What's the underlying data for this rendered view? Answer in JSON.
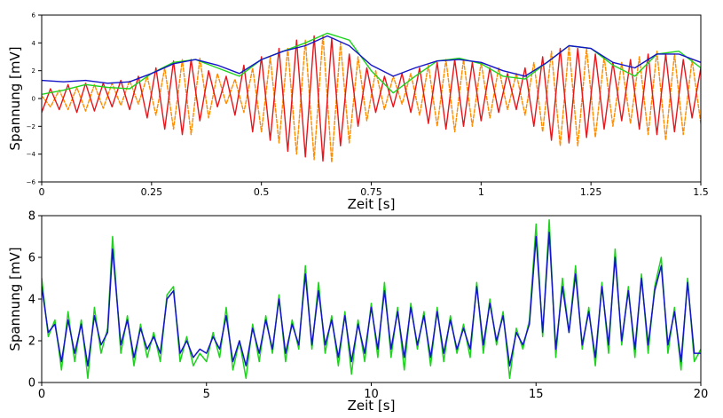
{
  "chart_data": [
    {
      "type": "line",
      "xlabel": "Zeit [s]",
      "ylabel": "Spannung [mV]",
      "xlim": [
        0,
        1.5
      ],
      "ylim": [
        -6,
        6
      ],
      "xticks": [
        {
          "v": 0,
          "label": "0"
        },
        {
          "v": 0.25,
          "label": "0.25"
        },
        {
          "v": 0.5,
          "label": "0.5"
        },
        {
          "v": 0.75,
          "label": "0.75"
        },
        {
          "v": 1,
          "label": "1"
        },
        {
          "v": 1.25,
          "label": "1.25"
        },
        {
          "v": 1.5,
          "label": "1.5"
        }
      ],
      "yticks": [
        {
          "v": -6,
          "label": "−6"
        },
        {
          "v": -4,
          "label": "−4"
        },
        {
          "v": -2,
          "label": "−2"
        },
        {
          "v": 0,
          "label": "0"
        },
        {
          "v": 2,
          "label": "2"
        },
        {
          "v": 4,
          "label": "4"
        },
        {
          "v": 6,
          "label": "6"
        }
      ],
      "grid": false,
      "series": [
        {
          "color": "#ff8c00",
          "dashed": true,
          "x": [
            0,
            0.02,
            0.04,
            0.06,
            0.08,
            0.1,
            0.12,
            0.14,
            0.16,
            0.18,
            0.2,
            0.22,
            0.24,
            0.26,
            0.28,
            0.3,
            0.32,
            0.34,
            0.36,
            0.38,
            0.4,
            0.42,
            0.44,
            0.46,
            0.48,
            0.5,
            0.52,
            0.54,
            0.56,
            0.58,
            0.6,
            0.62,
            0.64,
            0.66,
            0.68,
            0.7,
            0.72,
            0.74,
            0.76,
            0.78,
            0.8,
            0.82,
            0.84,
            0.86,
            0.88,
            0.9,
            0.92,
            0.94,
            0.96,
            0.98,
            1.0,
            1.02,
            1.04,
            1.06,
            1.08,
            1.1,
            1.12,
            1.14,
            1.16,
            1.18,
            1.2,
            1.22,
            1.24,
            1.26,
            1.28,
            1.3,
            1.32,
            1.34,
            1.36,
            1.38,
            1.4,
            1.42,
            1.44,
            1.46,
            1.48,
            1.5
          ],
          "y": [
            0.2,
            -0.6,
            0.6,
            -0.8,
            0.8,
            -0.9,
            1.0,
            -0.7,
            1.1,
            -0.5,
            1.3,
            -0.4,
            1.6,
            -1.2,
            2.2,
            -2.2,
            2.8,
            -2.6,
            2.9,
            -1.4,
            1.8,
            -0.4,
            1.4,
            -1.0,
            2.2,
            -2.4,
            3.0,
            -3.2,
            3.6,
            -4.0,
            4.2,
            -4.4,
            4.6,
            -4.6,
            4.0,
            -3.2,
            3.0,
            -1.6,
            2.0,
            -0.8,
            1.6,
            -0.4,
            1.8,
            -1.2,
            2.4,
            -2.0,
            2.8,
            -2.4,
            2.8,
            -2.0,
            2.6,
            -1.4,
            2.2,
            -0.8,
            1.8,
            -1.2,
            2.6,
            -2.4,
            3.4,
            -3.4,
            3.8,
            -3.4,
            3.6,
            -2.8,
            3.0,
            -2.0,
            2.6,
            -1.8,
            3.0,
            -2.6,
            3.4,
            -3.0,
            3.2,
            -2.6,
            2.8,
            -1.8
          ]
        },
        {
          "color": "#e8151b",
          "dashed": false,
          "x": [
            0,
            0.02,
            0.04,
            0.06,
            0.08,
            0.1,
            0.12,
            0.14,
            0.16,
            0.18,
            0.2,
            0.22,
            0.24,
            0.26,
            0.28,
            0.3,
            0.32,
            0.34,
            0.36,
            0.38,
            0.4,
            0.42,
            0.44,
            0.46,
            0.48,
            0.5,
            0.52,
            0.54,
            0.56,
            0.58,
            0.6,
            0.62,
            0.64,
            0.66,
            0.68,
            0.7,
            0.72,
            0.74,
            0.76,
            0.78,
            0.8,
            0.82,
            0.84,
            0.86,
            0.88,
            0.9,
            0.92,
            0.94,
            0.96,
            0.98,
            1.0,
            1.02,
            1.04,
            1.06,
            1.08,
            1.1,
            1.12,
            1.14,
            1.16,
            1.18,
            1.2,
            1.22,
            1.24,
            1.26,
            1.28,
            1.3,
            1.32,
            1.34,
            1.36,
            1.38,
            1.4,
            1.42,
            1.44,
            1.46,
            1.48,
            1.5
          ],
          "y": [
            -1.0,
            0.7,
            -0.8,
            1.0,
            -1.0,
            1.1,
            -0.9,
            1.1,
            -0.6,
            1.3,
            -0.8,
            1.6,
            -1.4,
            2.2,
            -2.2,
            2.7,
            -2.6,
            2.8,
            -1.6,
            2.0,
            -0.6,
            1.6,
            -1.2,
            2.4,
            -2.4,
            3.0,
            -3.0,
            3.6,
            -3.8,
            4.2,
            -4.2,
            4.5,
            -4.5,
            4.3,
            -3.4,
            3.2,
            -2.0,
            2.2,
            -1.0,
            1.6,
            -0.6,
            1.8,
            -1.0,
            2.2,
            -1.8,
            2.6,
            -2.2,
            2.8,
            -2.0,
            2.6,
            -1.6,
            2.2,
            -1.0,
            1.8,
            -0.8,
            2.2,
            -2.0,
            3.0,
            -3.0,
            3.6,
            -3.2,
            3.6,
            -2.8,
            3.2,
            -2.2,
            2.6,
            -1.6,
            2.8,
            -2.2,
            3.2,
            -2.6,
            3.2,
            -2.4,
            2.8,
            -1.4,
            2.2
          ]
        },
        {
          "color": "#1ed31e",
          "dashed": false,
          "x": [
            0,
            0.05,
            0.1,
            0.15,
            0.2,
            0.25,
            0.3,
            0.35,
            0.4,
            0.45,
            0.5,
            0.55,
            0.6,
            0.65,
            0.7,
            0.75,
            0.8,
            0.85,
            0.9,
            0.95,
            1.0,
            1.05,
            1.1,
            1.15,
            1.2,
            1.25,
            1.3,
            1.35,
            1.4,
            1.45,
            1.5
          ],
          "y": [
            0.3,
            0.6,
            1.0,
            0.8,
            0.7,
            1.8,
            2.6,
            2.8,
            2.2,
            1.6,
            2.8,
            3.4,
            4.0,
            4.7,
            4.2,
            2.0,
            0.4,
            1.6,
            2.7,
            2.9,
            2.5,
            1.6,
            1.4,
            2.6,
            3.8,
            3.6,
            2.4,
            1.6,
            3.2,
            3.4,
            2.2
          ]
        },
        {
          "color": "#1414c8",
          "dashed": false,
          "x": [
            0,
            0.05,
            0.1,
            0.15,
            0.2,
            0.25,
            0.3,
            0.35,
            0.4,
            0.45,
            0.5,
            0.55,
            0.6,
            0.65,
            0.7,
            0.75,
            0.8,
            0.85,
            0.9,
            0.95,
            1.0,
            1.05,
            1.1,
            1.15,
            1.2,
            1.25,
            1.3,
            1.35,
            1.4,
            1.45,
            1.5
          ],
          "y": [
            1.3,
            1.2,
            1.3,
            1.1,
            1.2,
            1.8,
            2.5,
            2.8,
            2.4,
            1.8,
            2.8,
            3.4,
            3.8,
            4.5,
            3.8,
            2.4,
            1.6,
            2.2,
            2.7,
            2.8,
            2.6,
            2.0,
            1.6,
            2.6,
            3.8,
            3.6,
            2.6,
            2.2,
            3.2,
            3.2,
            2.6
          ]
        }
      ]
    },
    {
      "type": "line",
      "xlabel": "Zeit [s]",
      "ylabel": "Spannung [mV]",
      "xlim": [
        0,
        20
      ],
      "ylim": [
        0,
        8
      ],
      "xticks": [
        {
          "v": 0,
          "label": "0"
        },
        {
          "v": 5,
          "label": "5"
        },
        {
          "v": 10,
          "label": "10"
        },
        {
          "v": 15,
          "label": "15"
        },
        {
          "v": 20,
          "label": "20"
        }
      ],
      "yticks": [
        {
          "v": 0,
          "label": "0"
        },
        {
          "v": 2,
          "label": "2"
        },
        {
          "v": 4,
          "label": "4"
        },
        {
          "v": 6,
          "label": "6"
        },
        {
          "v": 8,
          "label": "8"
        }
      ],
      "grid": false,
      "series": [
        {
          "color": "#1ed31e",
          "dashed": false,
          "x": [
            0,
            0.2,
            0.4,
            0.6,
            0.8,
            1.0,
            1.2,
            1.4,
            1.6,
            1.8,
            2.0,
            2.15,
            2.4,
            2.6,
            2.8,
            3.0,
            3.2,
            3.4,
            3.6,
            3.8,
            4.0,
            4.2,
            4.4,
            4.6,
            4.8,
            5.0,
            5.2,
            5.4,
            5.6,
            5.8,
            6.0,
            6.2,
            6.4,
            6.6,
            6.8,
            7.0,
            7.2,
            7.4,
            7.6,
            7.8,
            8.0,
            8.2,
            8.4,
            8.6,
            8.8,
            9.0,
            9.2,
            9.4,
            9.6,
            9.8,
            10.0,
            10.2,
            10.4,
            10.6,
            10.8,
            11.0,
            11.2,
            11.4,
            11.6,
            11.8,
            12.0,
            12.2,
            12.4,
            12.6,
            12.8,
            13.0,
            13.2,
            13.4,
            13.6,
            13.8,
            14.0,
            14.2,
            14.4,
            14.6,
            14.8,
            15.0,
            15.2,
            15.4,
            15.6,
            15.8,
            16.0,
            16.2,
            16.4,
            16.6,
            16.8,
            17.0,
            17.2,
            17.4,
            17.6,
            17.8,
            18.0,
            18.2,
            18.4,
            18.6,
            18.8,
            19.0,
            19.2,
            19.4,
            19.6,
            19.8,
            20.0
          ],
          "y": [
            5.0,
            2.2,
            3.0,
            0.6,
            3.4,
            1.0,
            3.0,
            0.2,
            3.6,
            1.4,
            2.6,
            7.0,
            1.4,
            3.2,
            0.8,
            2.8,
            1.2,
            2.4,
            1.0,
            4.2,
            4.6,
            1.0,
            2.2,
            0.8,
            1.4,
            1.0,
            2.4,
            1.2,
            3.6,
            0.6,
            2.0,
            0.2,
            2.8,
            1.0,
            3.2,
            1.4,
            4.2,
            1.0,
            3.0,
            1.6,
            5.6,
            1.6,
            4.8,
            1.4,
            3.2,
            0.8,
            3.4,
            0.4,
            3.0,
            1.0,
            3.8,
            1.2,
            4.8,
            1.2,
            3.6,
            0.6,
            3.8,
            1.6,
            3.4,
            0.8,
            3.6,
            1.0,
            3.2,
            1.4,
            2.8,
            1.2,
            4.8,
            1.4,
            4.0,
            1.8,
            3.4,
            0.2,
            2.6,
            1.6,
            3.0,
            7.6,
            2.2,
            7.8,
            1.2,
            5.0,
            2.4,
            5.6,
            1.6,
            3.6,
            0.8,
            4.8,
            1.4,
            6.4,
            1.8,
            4.6,
            1.2,
            5.2,
            1.4,
            4.6,
            6.0,
            1.4,
            3.6,
            0.6,
            5.0,
            1.0,
            1.6
          ]
        },
        {
          "color": "#1414c8",
          "dashed": false,
          "x": [
            0,
            0.2,
            0.4,
            0.6,
            0.8,
            1.0,
            1.2,
            1.4,
            1.6,
            1.8,
            2.0,
            2.15,
            2.4,
            2.6,
            2.8,
            3.0,
            3.2,
            3.4,
            3.6,
            3.8,
            4.0,
            4.2,
            4.4,
            4.6,
            4.8,
            5.0,
            5.2,
            5.4,
            5.6,
            5.8,
            6.0,
            6.2,
            6.4,
            6.6,
            6.8,
            7.0,
            7.2,
            7.4,
            7.6,
            7.8,
            8.0,
            8.2,
            8.4,
            8.6,
            8.8,
            9.0,
            9.2,
            9.4,
            9.6,
            9.8,
            10.0,
            10.2,
            10.4,
            10.6,
            10.8,
            11.0,
            11.2,
            11.4,
            11.6,
            11.8,
            12.0,
            12.2,
            12.4,
            12.6,
            12.8,
            13.0,
            13.2,
            13.4,
            13.6,
            13.8,
            14.0,
            14.2,
            14.4,
            14.6,
            14.8,
            15.0,
            15.2,
            15.4,
            15.6,
            15.8,
            16.0,
            16.2,
            16.4,
            16.6,
            16.8,
            17.0,
            17.2,
            17.4,
            17.6,
            17.8,
            18.0,
            18.2,
            18.4,
            18.6,
            18.8,
            19.0,
            19.2,
            19.4,
            19.6,
            19.8,
            20.0
          ],
          "y": [
            4.6,
            2.4,
            2.8,
            1.0,
            3.0,
            1.4,
            2.8,
            0.8,
            3.2,
            1.8,
            2.4,
            6.4,
            1.8,
            3.0,
            1.2,
            2.6,
            1.6,
            2.2,
            1.4,
            4.0,
            4.4,
            1.4,
            2.0,
            1.2,
            1.6,
            1.4,
            2.2,
            1.6,
            3.2,
            1.0,
            2.0,
            0.8,
            2.6,
            1.4,
            3.0,
            1.6,
            4.0,
            1.4,
            2.8,
            1.8,
            5.2,
            1.8,
            4.4,
            1.8,
            3.0,
            1.2,
            3.2,
            1.0,
            2.8,
            1.4,
            3.6,
            1.6,
            4.4,
            1.6,
            3.4,
            1.2,
            3.6,
            1.8,
            3.2,
            1.2,
            3.4,
            1.4,
            3.0,
            1.6,
            2.6,
            1.6,
            4.6,
            1.8,
            3.8,
            2.0,
            3.2,
            0.8,
            2.4,
            1.8,
            2.8,
            7.0,
            2.4,
            7.2,
            1.6,
            4.6,
            2.4,
            5.2,
            1.8,
            3.4,
            1.2,
            4.6,
            1.8,
            6.0,
            2.0,
            4.4,
            1.6,
            5.0,
            1.8,
            4.4,
            5.6,
            1.8,
            3.4,
            1.0,
            4.8,
            1.4,
            1.4
          ]
        }
      ]
    }
  ]
}
